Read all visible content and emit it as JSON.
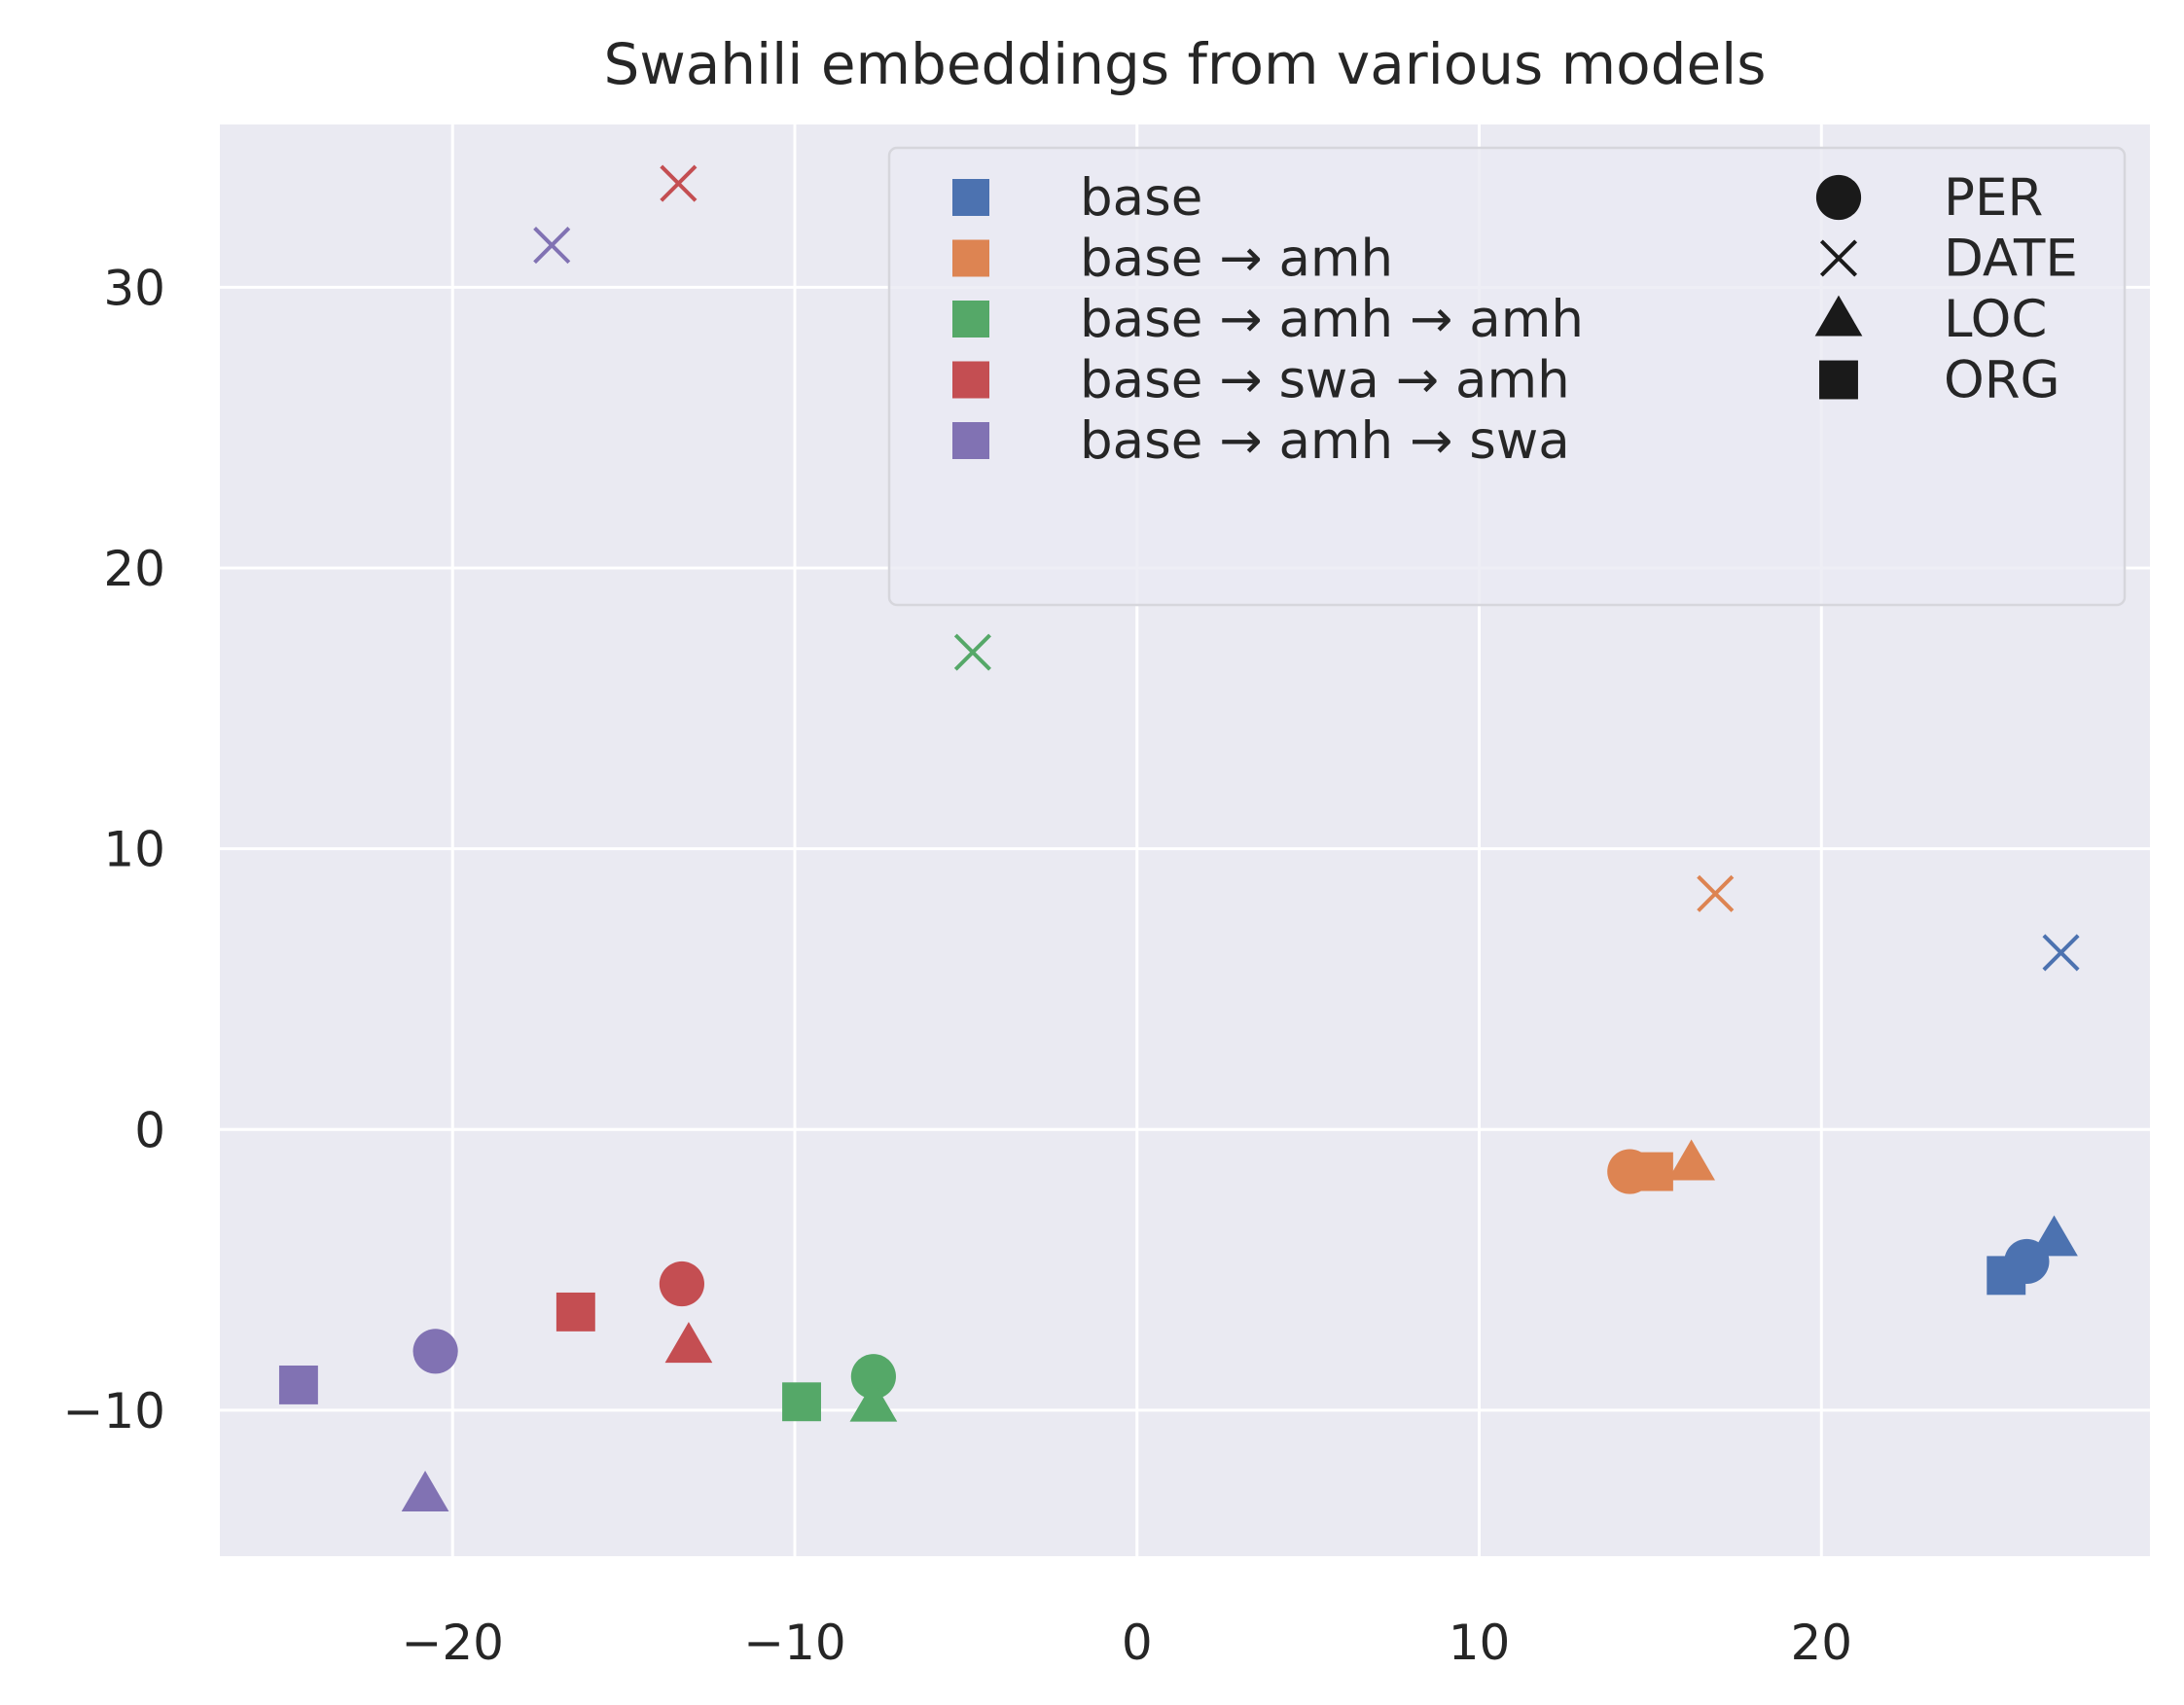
{
  "chart_data": {
    "type": "scatter",
    "title": "Swahili embeddings from various models",
    "xlabel": "",
    "ylabel": "",
    "xlim": [
      -26.8,
      29.6
    ],
    "ylim": [
      -15.2,
      35.8
    ],
    "xticks": [
      -20,
      -10,
      0,
      10,
      20
    ],
    "yticks": [
      -10,
      0,
      10,
      20,
      30
    ],
    "xtick_labels": [
      "−20",
      "−10",
      "0",
      "10",
      "20"
    ],
    "ytick_labels": [
      "−10",
      "0",
      "10",
      "20",
      "30"
    ],
    "grid": true,
    "background": "#eaeaf2",
    "legend_position": "top-right",
    "series": [
      {
        "name": "base",
        "color": "#4c72b0",
        "points": [
          {
            "label": "PER",
            "x": 26.0,
            "y": -4.7
          },
          {
            "label": "DATE",
            "x": 27.0,
            "y": 6.3
          },
          {
            "label": "LOC",
            "x": 26.8,
            "y": -3.9
          },
          {
            "label": "ORG",
            "x": 25.4,
            "y": -5.2
          }
        ]
      },
      {
        "name": "base → amh",
        "color": "#dd8452",
        "points": [
          {
            "label": "PER",
            "x": 14.4,
            "y": -1.5
          },
          {
            "label": "DATE",
            "x": 16.9,
            "y": 8.4
          },
          {
            "label": "LOC",
            "x": 16.2,
            "y": -1.2
          },
          {
            "label": "ORG",
            "x": 15.1,
            "y": -1.5
          }
        ]
      },
      {
        "name": "base → amh → amh",
        "color": "#55a868",
        "points": [
          {
            "label": "PER",
            "x": -7.7,
            "y": -8.8
          },
          {
            "label": "DATE",
            "x": -4.8,
            "y": 17.0
          },
          {
            "label": "LOC",
            "x": -7.7,
            "y": -9.8
          },
          {
            "label": "ORG",
            "x": -9.8,
            "y": -9.7
          }
        ]
      },
      {
        "name": "base → swa → amh",
        "color": "#c44e52",
        "points": [
          {
            "label": "PER",
            "x": -13.3,
            "y": -5.5
          },
          {
            "label": "DATE",
            "x": -13.4,
            "y": 33.7
          },
          {
            "label": "LOC",
            "x": -13.1,
            "y": -7.7
          },
          {
            "label": "ORG",
            "x": -16.4,
            "y": -6.5
          }
        ]
      },
      {
        "name": "base → amh → swa",
        "color": "#8172b3",
        "points": [
          {
            "label": "PER",
            "x": -20.5,
            "y": -7.9
          },
          {
            "label": "DATE",
            "x": -17.1,
            "y": 31.5
          },
          {
            "label": "LOC",
            "x": -20.8,
            "y": -13.0
          },
          {
            "label": "ORG",
            "x": -24.5,
            "y": -9.1
          }
        ]
      }
    ],
    "marker_legend": [
      {
        "label": "PER",
        "marker": "circle"
      },
      {
        "label": "DATE",
        "marker": "x"
      },
      {
        "label": "LOC",
        "marker": "triangle"
      },
      {
        "label": "ORG",
        "marker": "square"
      }
    ]
  }
}
